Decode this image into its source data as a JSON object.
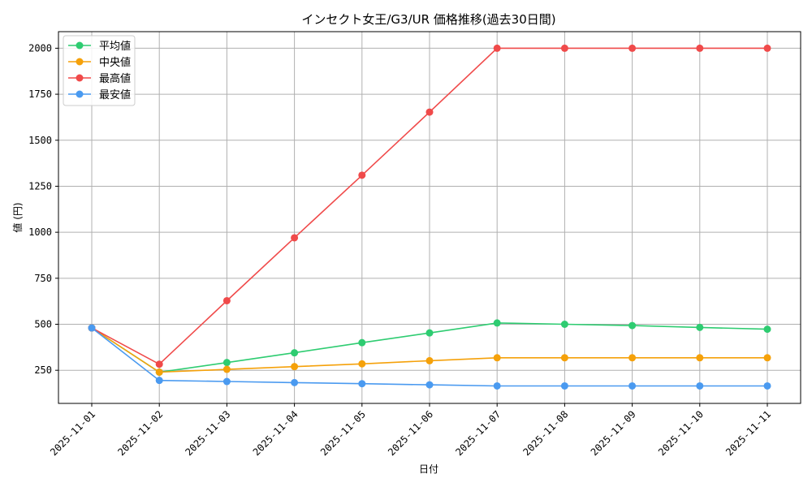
{
  "chart_data": {
    "type": "line",
    "title": "インセクト女王/G3/UR 価格推移(過去30日間)",
    "xlabel": "日付",
    "ylabel": "値 (円)",
    "categories": [
      "2025-11-01",
      "2025-11-02",
      "2025-11-03",
      "2025-11-04",
      "2025-11-05",
      "2025-11-06",
      "2025-11-07",
      "2025-11-08",
      "2025-11-09",
      "2025-11-10",
      "2025-11-11"
    ],
    "yticks": [
      250,
      500,
      750,
      1000,
      1250,
      1500,
      1750,
      2000
    ],
    "ylim": [
      70,
      2090
    ],
    "grid": true,
    "legend_position": "top-left",
    "series": [
      {
        "name": "平均値",
        "color": "#2ecc71",
        "values": [
          480,
          240,
          292,
          345,
          400,
          453,
          507,
          500,
          493,
          483,
          473
        ]
      },
      {
        "name": "中央値",
        "color": "#f5a10a",
        "values": [
          480,
          240,
          255,
          270,
          285,
          302,
          318,
          318,
          318,
          318,
          318
        ]
      },
      {
        "name": "最高値",
        "color": "#f04a4a",
        "values": [
          480,
          283,
          628,
          970,
          1310,
          1653,
          2000,
          2000,
          2000,
          2000,
          2000
        ]
      },
      {
        "name": "最安値",
        "color": "#4a9af0",
        "values": [
          480,
          195,
          189,
          183,
          177,
          171,
          165,
          165,
          165,
          165,
          165
        ]
      }
    ]
  }
}
